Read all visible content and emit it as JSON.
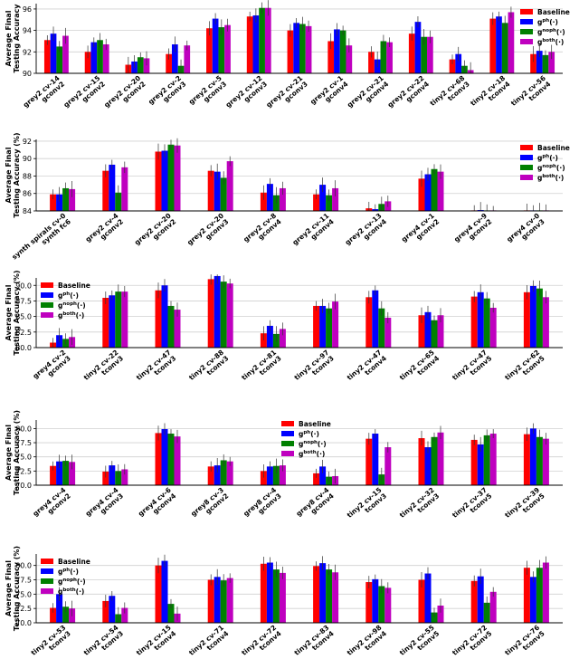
{
  "legend_labels": [
    "Baseline",
    "g^{ph}(·)",
    "g^{noph}(·)",
    "g^{both}(·)"
  ],
  "series_colors": [
    "#ff0000",
    "#0000ff",
    "#008000",
    "#bf00bf"
  ],
  "chart_data": [
    {
      "type": "bar",
      "ylabel": "Average Final\nTesting Accuracy",
      "ylim": [
        90,
        96.5
      ],
      "yticks": [
        90,
        92,
        94,
        96
      ],
      "legend_position": "top-right",
      "categories": [
        "grey2 cv-14\ngconv2",
        "grey2 cv-15\ngconv2",
        "grey2 cv-20\ngconv2",
        "grey2 cv-2\ngconv3",
        "grey2 cv-5\ngconv3",
        "grey2 cv-12\ngconv3",
        "grey2 cv-21\ngconv3",
        "grey2 cv-1\ngconv4",
        "grey2 cv-21\ngconv4",
        "grey2 cv-22\ngconv4",
        "tiny2 cv-68\ntconv3",
        "tiny2 cv-18\ntconv4",
        "tiny2 cv-56\ntconv4"
      ],
      "series": [
        {
          "name": "Baseline",
          "values": [
            93.1,
            92.0,
            90.8,
            91.8,
            94.2,
            95.3,
            94.0,
            93.0,
            92.0,
            93.7,
            91.3,
            95.1,
            91.8
          ]
        },
        {
          "name": "g^{ph}(·)",
          "values": [
            93.7,
            92.9,
            91.1,
            92.7,
            95.1,
            95.4,
            94.7,
            94.1,
            91.3,
            94.8,
            91.8,
            95.3,
            92.1
          ]
        },
        {
          "name": "g^{noph}(·)",
          "values": [
            92.5,
            93.1,
            91.5,
            90.7,
            94.3,
            96.1,
            94.6,
            94.0,
            93.0,
            93.4,
            90.7,
            94.7,
            91.7
          ]
        },
        {
          "name": "g^{both}(·)",
          "values": [
            93.5,
            92.7,
            91.4,
            92.6,
            94.5,
            96.1,
            94.4,
            92.6,
            92.9,
            93.4,
            90.3,
            95.7,
            92.0
          ]
        }
      ]
    },
    {
      "type": "bar",
      "ylabel": "Average Final\nTesting Accuracy (%)",
      "ylim": [
        84,
        92.2
      ],
      "yticks": [
        84,
        86,
        88,
        90,
        92
      ],
      "legend_position": "top-right",
      "categories": [
        "synth spirals cv-0\nsynth fc6",
        "grey2 cv-4\ngconv2",
        "grey2 cv-20\ngconv2",
        "grey2 cv-20\ngconv3",
        "grey2 cv-8\ngconv4",
        "grey2 cv-11\ngconv4",
        "grey2 cv-13\ngconv4",
        "grey4 cv-1\ngconv2",
        "grey4 cv-9\ngconv2",
        "grey4 cv-0\ngconv3"
      ],
      "series": [
        {
          "name": "Baseline",
          "values": [
            85.9,
            88.6,
            90.8,
            88.6,
            86.1,
            85.9,
            84.3,
            87.7,
            84.0,
            84.0
          ]
        },
        {
          "name": "g^{ph}(·)",
          "values": [
            85.9,
            89.3,
            90.9,
            88.5,
            87.1,
            87.0,
            84.2,
            88.2,
            84.1,
            84.0
          ]
        },
        {
          "name": "g^{noph}(·)",
          "values": [
            86.6,
            86.1,
            91.6,
            87.8,
            85.8,
            85.8,
            84.8,
            88.8,
            84.0,
            84.0
          ]
        },
        {
          "name": "g^{both}(·)",
          "values": [
            86.5,
            89.0,
            91.5,
            89.7,
            86.6,
            86.6,
            85.1,
            88.5,
            84.0,
            84.0
          ]
        }
      ]
    },
    {
      "type": "bar",
      "ylabel": "Average Final\nTesting Accuracy (%)",
      "ylim": [
        80,
        91.2
      ],
      "yticks": [
        80.0,
        82.5,
        85.0,
        87.5,
        90.0
      ],
      "legend_position": "top-left",
      "categories": [
        "grey4 cv-2\ngconv3",
        "tiny2 cv-22\ntconv3",
        "tiny2 cv-47\ntconv3",
        "tiny2 cv-88\ntconv3",
        "tiny2 cv-81\ntconv3",
        "tiny2 cv-97\ntconv3",
        "tiny2 cv-47\ntconv4",
        "tiny2 cv-65\ntconv4",
        "tiny2 cv-47\ntconv5",
        "tiny2 cv-62\ntconv5"
      ],
      "series": [
        {
          "name": "Baseline",
          "values": [
            80.8,
            88.0,
            89.2,
            91.0,
            82.3,
            86.7,
            88.1,
            85.2,
            88.2,
            88.9
          ]
        },
        {
          "name": "g^{ph}(·)",
          "values": [
            82.0,
            88.4,
            90.0,
            91.5,
            83.5,
            86.7,
            89.2,
            85.7,
            88.9,
            89.9
          ]
        },
        {
          "name": "g^{noph}(·)",
          "values": [
            81.4,
            89.0,
            86.7,
            90.6,
            82.2,
            86.3,
            86.3,
            84.4,
            87.9,
            89.5
          ]
        },
        {
          "name": "g^{both}(·)",
          "values": [
            81.7,
            89.0,
            86.1,
            90.3,
            83.0,
            87.4,
            84.8,
            85.2,
            86.4,
            88.1
          ]
        }
      ]
    },
    {
      "type": "bar",
      "ylabel": "Average Final\nTesting Accuracy (%)",
      "ylim": [
        70,
        81.5
      ],
      "yticks": [
        70.0,
        72.5,
        75.0,
        77.5,
        80.0
      ],
      "legend_position": "top-center",
      "categories": [
        "grey4 cv-4\ngconv2",
        "grey4 cv-4\ngconv3",
        "grey4 cv-6\ngconv4",
        "grey8 cv-3\ngconv2",
        "grey8 cv-4\ngconv3",
        "grey8 cv-4\ngconv4",
        "tiny2 cv-15\ntconv3",
        "tiny2 cv-32\ntconv3",
        "tiny2 cv-37\ntconv5",
        "tiny2 cv-39\ntconv5"
      ],
      "series": [
        {
          "name": "Baseline",
          "values": [
            73.4,
            72.4,
            79.2,
            73.3,
            72.5,
            72.1,
            78.2,
            78.3,
            78.0,
            79.0
          ]
        },
        {
          "name": "g^{ph}(·)",
          "values": [
            74.2,
            73.5,
            79.9,
            73.5,
            73.3,
            73.3,
            79.1,
            76.7,
            77.2,
            80.0
          ]
        },
        {
          "name": "g^{noph}(·)",
          "values": [
            74.3,
            72.5,
            79.1,
            74.4,
            73.4,
            71.5,
            71.9,
            78.5,
            78.8,
            78.5
          ]
        },
        {
          "name": "g^{both}(·)",
          "values": [
            74.1,
            72.8,
            78.6,
            74.2,
            73.5,
            71.6,
            76.7,
            79.3,
            79.1,
            78.2
          ]
        }
      ]
    },
    {
      "type": "bar",
      "ylabel": "Average Final\nTesting Accuracy (%)",
      "ylim": [
        70,
        82
      ],
      "yticks": [
        70.0,
        72.5,
        75.0,
        77.5,
        80.0
      ],
      "legend_position": "top-left",
      "categories": [
        "tiny2 cv-53\ntconv3",
        "tiny2 cv-54\ntconv3",
        "tiny2 cv-15\ntconv4",
        "tiny2 cv-71\ntconv4",
        "tiny2 cv-72\ntconv4",
        "tiny2 cv-83\ntconv4",
        "tiny2 cv-98\ntconv4",
        "tiny2 cv-55\ntconv5",
        "tiny2 cv-72\ntconv5",
        "tiny2 cv-76\ntconv5"
      ],
      "series": [
        {
          "name": "Baseline",
          "values": [
            72.6,
            73.8,
            80.0,
            77.5,
            80.3,
            79.9,
            77.1,
            77.5,
            77.3,
            79.6
          ]
        },
        {
          "name": "g^{ph}(·)",
          "values": [
            75.0,
            74.7,
            80.8,
            78.0,
            80.5,
            80.4,
            77.6,
            78.6,
            78.1,
            78.0
          ]
        },
        {
          "name": "g^{noph}(·)",
          "values": [
            72.8,
            71.5,
            73.3,
            77.4,
            79.3,
            79.3,
            76.4,
            71.8,
            73.5,
            79.6
          ]
        },
        {
          "name": "g^{both}(·)",
          "values": [
            72.5,
            72.6,
            71.6,
            77.8,
            78.7,
            78.8,
            76.1,
            73.0,
            75.4,
            80.5
          ]
        }
      ]
    }
  ]
}
